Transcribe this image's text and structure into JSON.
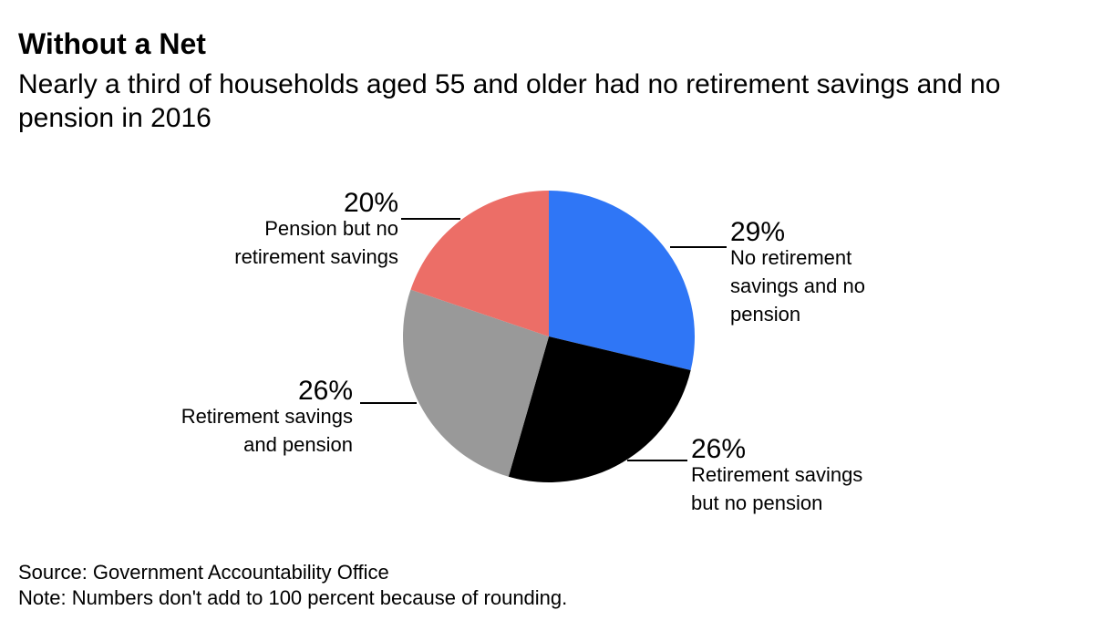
{
  "header": {
    "title": "Without a Net",
    "subtitle": "Nearly a third of households aged 55 and older had no retirement savings and no pension in 2016"
  },
  "chart_data": {
    "type": "pie",
    "title": "Without a Net",
    "subtitle": "Nearly a third of households aged 55 and older had no retirement savings and no pension in 2016",
    "slices": [
      {
        "label": "No retirement savings and no pension",
        "label_lines": [
          "No retirement",
          "savings and no",
          "pension"
        ],
        "value": 29,
        "value_label": "29%",
        "color": "#2f76f6"
      },
      {
        "label": "Retirement savings but no pension",
        "label_lines": [
          "Retirement savings",
          "but no pension"
        ],
        "value": 26,
        "value_label": "26%",
        "color": "#000000"
      },
      {
        "label": "Retirement savings and pension",
        "label_lines": [
          "Retirement savings",
          "and pension"
        ],
        "value": 26,
        "value_label": "26%",
        "color": "#999999"
      },
      {
        "label": "Pension but no retirement savings",
        "label_lines": [
          "Pension but no",
          "retirement savings"
        ],
        "value": 20,
        "value_label": "20%",
        "color": "#ec6e67"
      }
    ],
    "start_angle_deg": 0,
    "direction": "clockwise",
    "note_total": "Numbers don't add to 100 percent because of rounding."
  },
  "footer": {
    "source": "Source: Government Accountability Office",
    "note": "Note: Numbers don't add to 100 percent because of rounding."
  }
}
